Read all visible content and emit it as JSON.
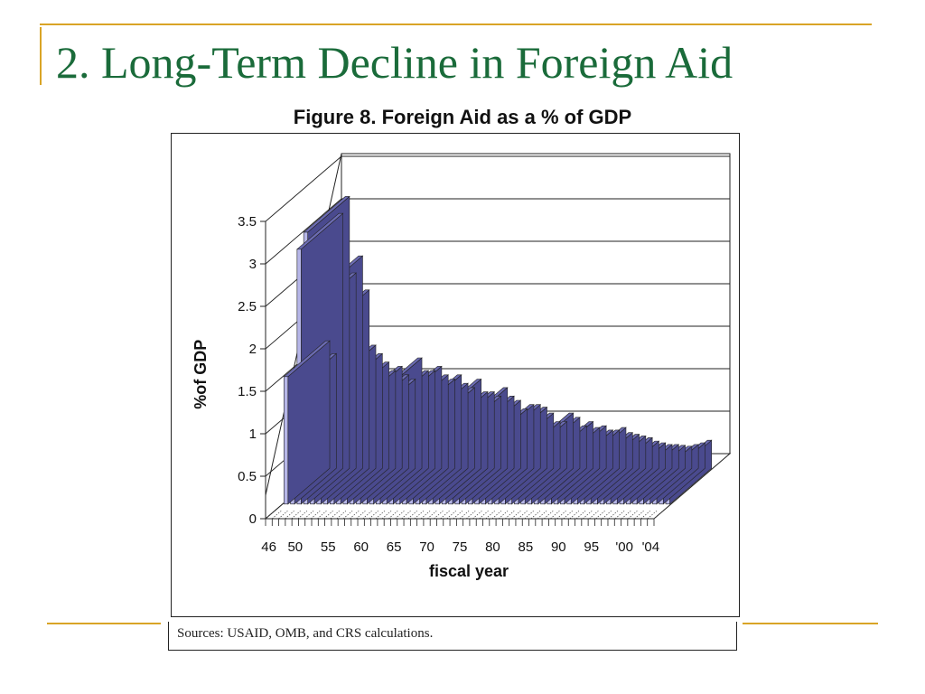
{
  "slide": {
    "title": "2. Long-Term Decline in Foreign Aid",
    "source": "Sources: USAID, OMB, and CRS calculations.",
    "accent_color": "#d9a426",
    "title_color": "#1a6b3a"
  },
  "chart_data": {
    "type": "bar",
    "style": "3d",
    "title": "Figure 8.  Foreign Aid as a % of GDP",
    "xlabel": "fiscal year",
    "ylabel": "%of GDP",
    "ylim": [
      0,
      3.5
    ],
    "yticks": [
      "0",
      "0.5",
      "1",
      "1.5",
      "2",
      "2.5",
      "3",
      "3.5"
    ],
    "xtick_labels": [
      "46",
      "50",
      "55",
      "60",
      "65",
      "70",
      "75",
      "80",
      "85",
      "90",
      "95",
      "'00",
      "'04"
    ],
    "bar_color": "#8585c8",
    "categories": [
      1946,
      1947,
      1948,
      1949,
      1950,
      1951,
      1952,
      1953,
      1954,
      1955,
      1956,
      1957,
      1958,
      1959,
      1960,
      1961,
      1962,
      1963,
      1964,
      1965,
      1966,
      1967,
      1968,
      1969,
      1970,
      1971,
      1972,
      1973,
      1974,
      1975,
      1976,
      1977,
      1978,
      1979,
      1980,
      1981,
      1982,
      1983,
      1984,
      1985,
      1986,
      1987,
      1988,
      1989,
      1990,
      1991,
      1992,
      1993,
      1994,
      1995,
      1996,
      1997,
      1998,
      1999,
      2000,
      2001,
      2002,
      2003,
      2004
    ],
    "values": [
      1.5,
      1.35,
      3.0,
      3.2,
      2.3,
      2.5,
      2.1,
      1.45,
      1.35,
      1.25,
      1.15,
      1.2,
      1.1,
      1.05,
      1.3,
      1.15,
      1.15,
      1.2,
      1.1,
      1.05,
      1.1,
      1.0,
      0.95,
      1.05,
      0.9,
      0.9,
      0.85,
      0.95,
      0.85,
      0.8,
      0.7,
      0.75,
      0.75,
      0.72,
      0.65,
      0.55,
      0.55,
      0.65,
      0.6,
      0.5,
      0.55,
      0.48,
      0.5,
      0.45,
      0.45,
      0.48,
      0.42,
      0.4,
      0.38,
      0.36,
      0.32,
      0.3,
      0.28,
      0.28,
      0.27,
      0.26,
      0.28,
      0.3,
      0.33
    ]
  }
}
